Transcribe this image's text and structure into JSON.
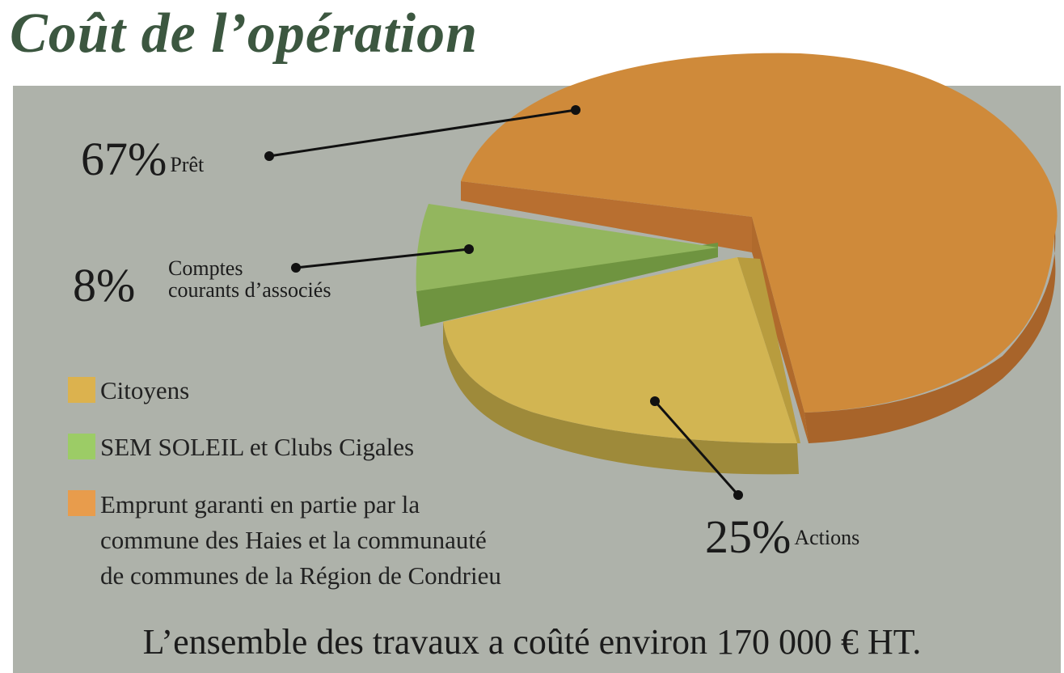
{
  "title": "Coût de l’opération",
  "footer": "L’ensemble des travaux a coûté environ 170 000 € HT.",
  "chart_data": {
    "type": "pie",
    "title": "Coût de l’opération",
    "slices": [
      {
        "percent": 67,
        "percent_label": "67%",
        "label": "Prêt",
        "color": "#cf8a3a",
        "legend": "Emprunt garanti en partie par la commune des Haies et la communauté de communes de la Région de Condrieu"
      },
      {
        "percent": 8,
        "percent_label": "8%",
        "label": "Comptes courants d’associés",
        "label_lines": [
          "Comptes",
          "courants d’associés"
        ],
        "color": "#93b65e",
        "legend": "SEM SOLEIL et Clubs Cigales"
      },
      {
        "percent": 25,
        "percent_label": "25%",
        "label": "Actions",
        "color": "#d2b552",
        "legend": "Citoyens"
      }
    ],
    "legend": [
      {
        "label": "Citoyens",
        "color": "#dcb24e"
      },
      {
        "label": "SEM SOLEIL et Clubs Cigales",
        "color": "#9ccc66"
      },
      {
        "label": "Emprunt garanti en partie par la",
        "label_lines": [
          "Emprunt garanti en partie par la",
          "commune des Haies et la communauté",
          "de communes de la Région de Condrieu"
        ],
        "color": "#e89c4c"
      }
    ],
    "legend_position": "left"
  }
}
